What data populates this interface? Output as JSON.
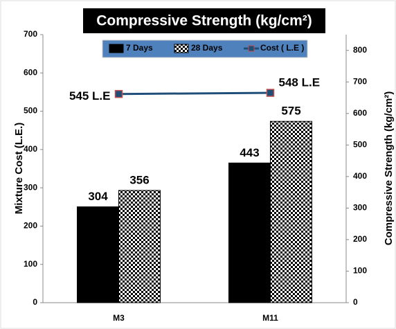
{
  "chart_data": {
    "type": "bar",
    "title": "Compressive Strength (kg/cm²)",
    "categories": [
      "M3",
      "M11"
    ],
    "ylabel": "Mixture Cost  (L.E.)",
    "y2label": "Compressive Strength (kg/cm²)",
    "ylim": [
      0,
      700
    ],
    "yticks": [
      0,
      100,
      200,
      300,
      400,
      500,
      600,
      700
    ],
    "y2lim": [
      0,
      850
    ],
    "y2ticks": [
      0,
      100,
      200,
      300,
      400,
      500,
      600,
      700,
      800
    ],
    "legend": "top",
    "series": [
      {
        "name": "7 Days",
        "type": "bar",
        "color": "#000000",
        "axis": "y2",
        "values": [
          304,
          443
        ]
      },
      {
        "name": "28 Days",
        "type": "bar",
        "color": "#000000",
        "pattern": "checkerboard",
        "axis": "y2",
        "values": [
          356,
          575
        ]
      },
      {
        "name": "Cost ( L.E )",
        "type": "line",
        "color": "#1f4e79",
        "marker_color": "#c0504d",
        "axis": "y",
        "values": [
          545,
          548
        ],
        "value_labels": [
          "545 L.E",
          "548 L.E"
        ]
      }
    ]
  }
}
